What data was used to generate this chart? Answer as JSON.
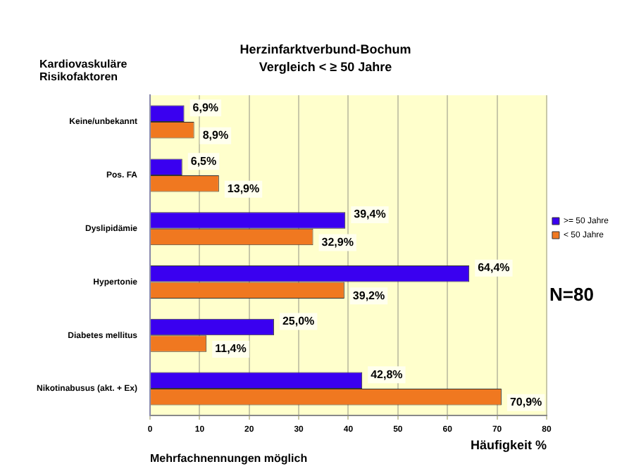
{
  "chart_data": {
    "type": "bar",
    "orientation": "horizontal",
    "title": "Herzinfarktverbund-Bochum",
    "subtitle": "Vergleich < ≥ 50 Jahre",
    "ylabel": "Kardiovaskuläre Risikofaktoren",
    "xlabel": "Häufigkeit %",
    "categories": [
      "Keine/unbekannt",
      "Pos. FA",
      "Dyslipidämie",
      "Hypertonie",
      "Diabetes mellitus",
      "Nikotinabusus (akt. + Ex)"
    ],
    "series": [
      {
        "name": ">= 50 Jahre",
        "color": "#3a00f0",
        "values": [
          6.9,
          6.5,
          39.4,
          64.4,
          25.0,
          42.8
        ],
        "value_labels": [
          "6,9%",
          "6,5%",
          "39,4%",
          "64,4%",
          "25,0%",
          "42,8%"
        ]
      },
      {
        "name": "< 50 Jahre",
        "color": "#f07820",
        "values": [
          8.9,
          13.9,
          32.9,
          39.2,
          11.4,
          70.9
        ],
        "value_labels": [
          "8,9%",
          "13,9%",
          "32,9%",
          "39,2%",
          "11,4%",
          "70,9%"
        ]
      }
    ],
    "xlim": [
      0,
      80
    ],
    "xticks": [
      0,
      10,
      20,
      30,
      40,
      50,
      60,
      70,
      80
    ],
    "grid": "x",
    "legend": "right",
    "annotations": [
      "Mehrfachnennungen möglich",
      "N=80"
    ]
  }
}
